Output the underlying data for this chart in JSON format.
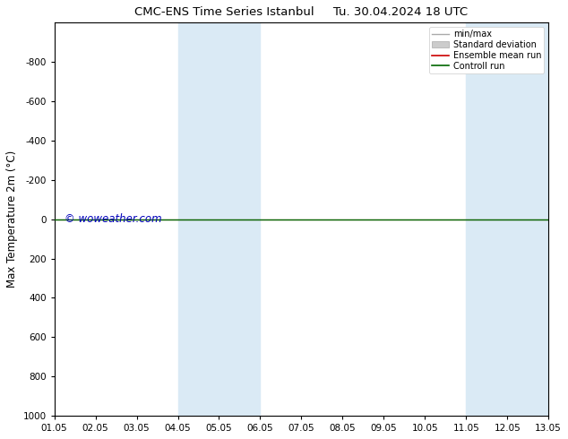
{
  "title": "CMC-ENS Time Series Istanbul",
  "title2": "Tu. 30.04.2024 18 UTC",
  "ylabel": "Max Temperature 2m (°C)",
  "xlim": [
    0,
    12
  ],
  "ylim": [
    -1000,
    1000
  ],
  "yticks": [
    -800,
    -600,
    -400,
    -200,
    0,
    200,
    400,
    600,
    800,
    1000
  ],
  "xtick_labels": [
    "01.05",
    "02.05",
    "03.05",
    "04.05",
    "05.05",
    "06.05",
    "07.05",
    "08.05",
    "09.05",
    "10.05",
    "11.05",
    "12.05",
    "13.05"
  ],
  "shaded_regions": [
    [
      3,
      4
    ],
    [
      4,
      5
    ],
    [
      10,
      11
    ],
    [
      11,
      12
    ]
  ],
  "shaded_color": "#daeaf5",
  "control_run_y": 0,
  "ensemble_mean_color": "#cc0000",
  "control_run_color": "#006600",
  "minmax_color": "#999999",
  "stddev_color": "#cccccc",
  "watermark": "© woweather.com",
  "watermark_color": "#0000bb",
  "background_color": "#ffffff",
  "legend_items": [
    "min/max",
    "Standard deviation",
    "Ensemble mean run",
    "Controll run"
  ],
  "legend_colors": [
    "#aaaaaa",
    "#cccccc",
    "#cc0000",
    "#006600"
  ]
}
